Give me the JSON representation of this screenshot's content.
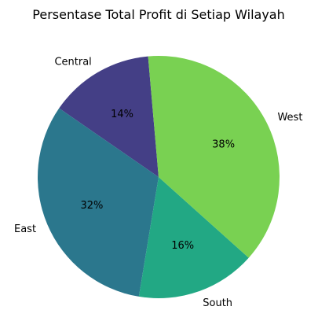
{
  "chart_data": {
    "type": "pie",
    "title": "Persentase Total Profit di Setiap Wilayah",
    "slices": [
      {
        "label": "Central",
        "value": 14,
        "pct_label": "14%",
        "color": "#443f86"
      },
      {
        "label": "East",
        "value": 32,
        "pct_label": "32%",
        "color": "#2b778d"
      },
      {
        "label": "South",
        "value": 16,
        "pct_label": "16%",
        "color": "#22a884"
      },
      {
        "label": "West",
        "value": 38,
        "pct_label": "38%",
        "color": "#79d152"
      }
    ],
    "start_angle_deg": 95,
    "direction": "counterclockwise"
  }
}
